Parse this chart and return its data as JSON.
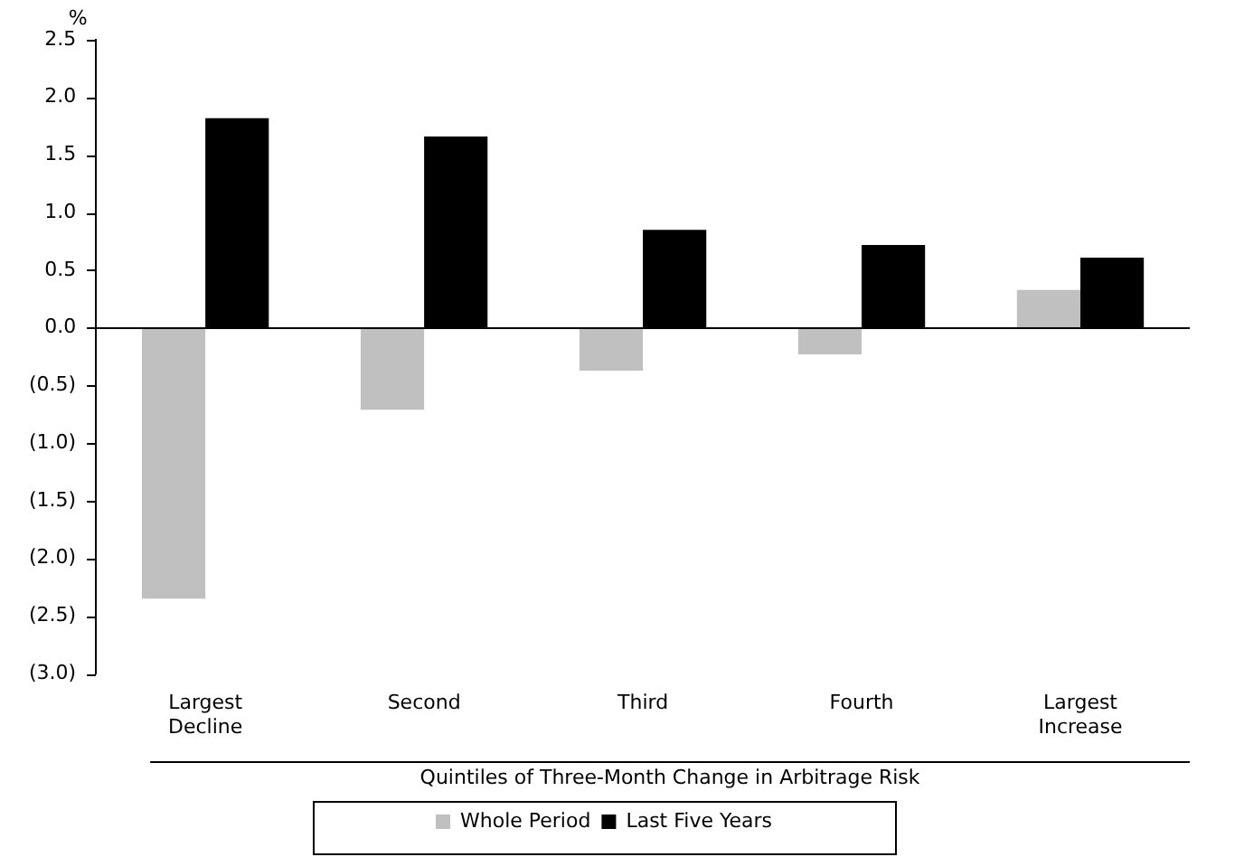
{
  "chart_data": {
    "type": "bar",
    "xlabel": "Quintiles of Three-Month Change in Arbitrage Risk",
    "ylabel": "%",
    "categories": [
      "Largest Decline",
      "Second",
      "Third",
      "Fourth",
      "Largest Increase"
    ],
    "series": [
      {
        "name": "Whole Period",
        "color": "#c0c0c0",
        "values": [
          -2.35,
          -0.71,
          -0.37,
          -0.23,
          0.33
        ]
      },
      {
        "name": "Last Five Years",
        "color": "#000000",
        "values": [
          1.82,
          1.66,
          0.85,
          0.72,
          0.61
        ]
      }
    ],
    "ylim": [
      -3.0,
      2.5
    ],
    "yticks": [
      {
        "value": -3.0,
        "label": "(3.0)"
      },
      {
        "value": -2.5,
        "label": "(2.5)"
      },
      {
        "value": -2.0,
        "label": "(2.0)"
      },
      {
        "value": -1.5,
        "label": "(1.5)"
      },
      {
        "value": -1.0,
        "label": "(1.0)"
      },
      {
        "value": -0.5,
        "label": "(0.5)"
      },
      {
        "value": 0,
        "label": "0.0"
      },
      {
        "value": 0.5,
        "label": "0.5"
      },
      {
        "value": 1.0,
        "label": "1.0"
      },
      {
        "value": 1.5,
        "label": "1.5"
      },
      {
        "value": 2.0,
        "label": "2.0"
      },
      {
        "value": 2.5,
        "label": "2.5"
      }
    ],
    "ref_lines": [
      {
        "axis": "y",
        "value": 0,
        "color": "#000000"
      }
    ],
    "grid": false,
    "legend": "bottom"
  }
}
